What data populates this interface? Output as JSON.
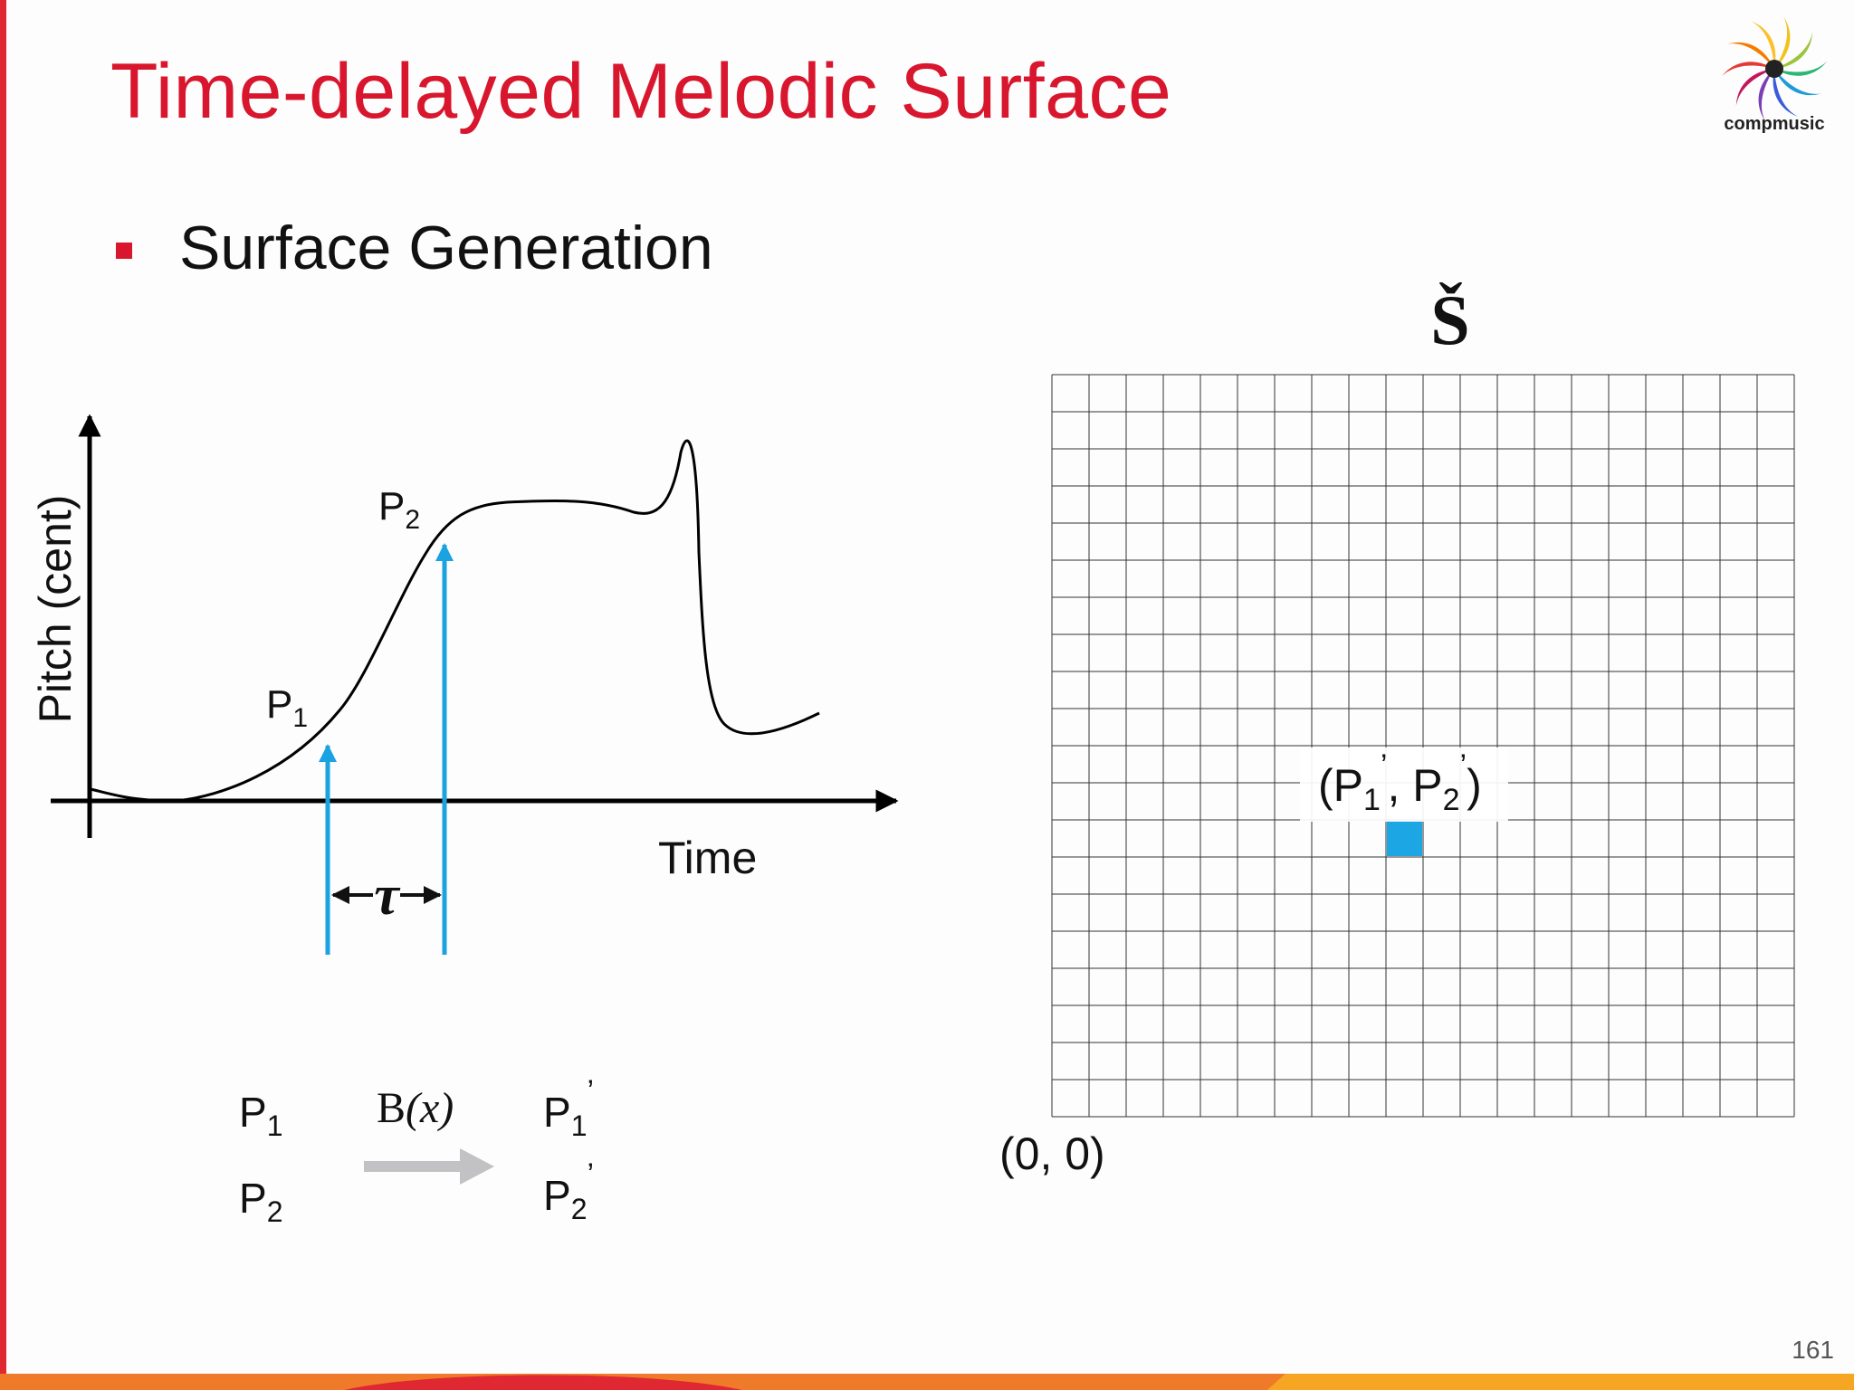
{
  "slide": {
    "title": "Time-delayed Melodic Surface",
    "bullet": "Surface Generation",
    "logo_text": "compmusic",
    "page_number": "161"
  },
  "plot": {
    "y_axis_label": "Pitch (cent)",
    "x_axis_label": "Time",
    "point1_base": "P",
    "point1_sub": "1",
    "point2_base": "P",
    "point2_sub": "2",
    "delay_symbol": "τ"
  },
  "mapping": {
    "function_label_main": "B",
    "function_label_arg": "(x)",
    "in1_base": "P",
    "in1_sub": "1",
    "in2_base": "P",
    "in2_sub": "2",
    "out1_base": "P",
    "out1_sub": "1",
    "out1_prime": "’",
    "out2_base": "P",
    "out2_sub": "2",
    "out2_prime": "’"
  },
  "surface": {
    "symbol": "Š",
    "origin_label": "(0, 0)",
    "highlight_open": "(P",
    "highlight_sub1": "1",
    "highlight_prime1": "’",
    "highlight_mid": ", P",
    "highlight_sub2": "2",
    "highlight_prime2": "’",
    "highlight_close": ")",
    "rows": 20,
    "cols": 20,
    "highlight_cell": {
      "col": 9,
      "row": 7
    }
  },
  "colors": {
    "accent_red": "#d8162d",
    "arrow_blue": "#1aa3e0",
    "highlight_blue": "#1ca6e3",
    "grid_line": "#333333",
    "map_arrow_gray": "#c2c2c4"
  }
}
